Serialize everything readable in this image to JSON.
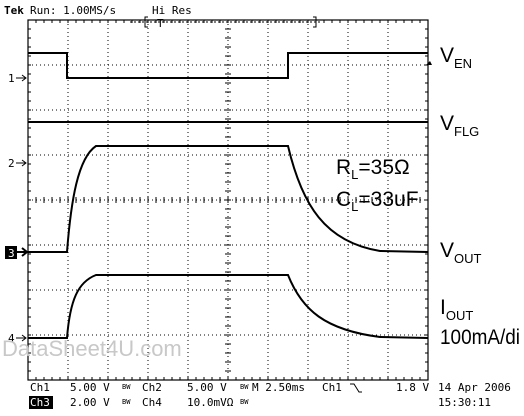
{
  "header": {
    "brand": "Tek",
    "status": "Run: 1.00MS/s",
    "mode": "Hi Res",
    "trigger": "T"
  },
  "markers": [
    "1",
    "2",
    "3",
    "4"
  ],
  "labels": {
    "ven": {
      "main": "V",
      "sub": "EN"
    },
    "vflg": {
      "main": "V",
      "sub": "FLG"
    },
    "rl": {
      "main": "R",
      "sub": "L",
      "rest": "=35Ω"
    },
    "cl": {
      "main": "C",
      "sub": "L",
      "rest": "=33uF"
    },
    "vout": {
      "main": "V",
      "sub": "OUT"
    },
    "iout": {
      "main": "I",
      "sub": "OUT"
    },
    "iout_scale": "100mA/di"
  },
  "watermark": "DataSheet4U.com",
  "footer": {
    "row1": [
      "Ch1",
      "5.00 V",
      "BW",
      "Ch2",
      "5.00 V",
      "BW",
      "M 2.50ms",
      "Ch1",
      "1.8 V"
    ],
    "row2": [
      "Ch3",
      "2.00 V",
      "BW",
      "Ch4",
      "10.0mVΩ",
      "BW"
    ],
    "date": "14 Apr 2006",
    "time": "15:30:11"
  }
}
